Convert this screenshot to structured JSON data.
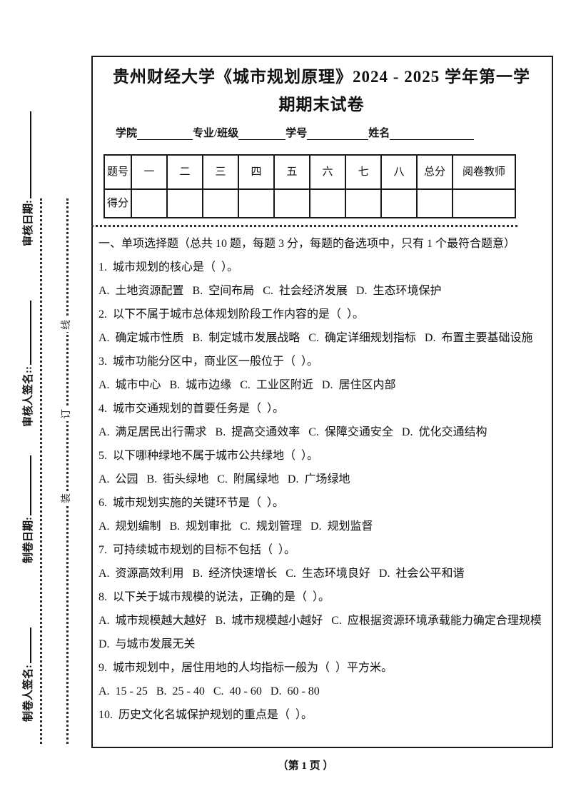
{
  "page": {
    "title": "贵州财经大学《城市规划原理》2024 - 2025 学年第一学期期末试卷",
    "footer": "（第 1 页 ）"
  },
  "margin": {
    "labels": [
      "审核日期:",
      "审核人签名::",
      "制卷日期:",
      "制卷人签名:"
    ],
    "binding_chars": [
      "线",
      "订",
      "装"
    ]
  },
  "form": {
    "fields": [
      {
        "label": "学院"
      },
      {
        "label": "专业/班级"
      },
      {
        "label": "学号"
      },
      {
        "label": "姓名"
      }
    ]
  },
  "score_table": {
    "row_header_label": "题号",
    "score_row_label": "得分",
    "columns": [
      "一",
      "二",
      "三",
      "四",
      "五",
      "六",
      "七",
      "八",
      "总分"
    ],
    "grader_label": "阅卷教师"
  },
  "section": {
    "heading": "一、单项选择题（总共 10 题，每题 3 分，每题的备选项中，只有 1 个最符合题意）"
  },
  "questions": [
    {
      "text": "1.  城市规划的核心是（  ）。",
      "options": "A.  土地资源配置   B.  空间布局   C.  社会经济发展   D.  生态环境保护"
    },
    {
      "text": "2.  以下不属于城市总体规划阶段工作内容的是（  ）。",
      "options": "A.  确定城市性质   B.  制定城市发展战略   C.  确定详细规划指标   D.  布置主要基础设施"
    },
    {
      "text": "3.  城市功能分区中，商业区一般位于（  ）。",
      "options": "A.  城市中心   B.  城市边缘   C.  工业区附近   D.  居住区内部"
    },
    {
      "text": "4.  城市交通规划的首要任务是（  ）。",
      "options": "A.  满足居民出行需求   B.  提高交通效率   C.  保障交通安全   D.  优化交通结构"
    },
    {
      "text": "5.  以下哪种绿地不属于城市公共绿地（  ）。",
      "options": "A.  公园   B.  街头绿地   C.  附属绿地   D.  广场绿地"
    },
    {
      "text": "6.  城市规划实施的关键环节是（  ）。",
      "options": "A.  规划编制   B.  规划审批   C.  规划管理   D.  规划监督"
    },
    {
      "text": "7.  可持续城市规划的目标不包括（  ）。",
      "options": "A.  资源高效利用   B.  经济快速增长   C.  生态环境良好   D.  社会公平和谐"
    },
    {
      "text": "8.  以下关于城市规模的说法，正确的是（  ）。",
      "options": "A.  城市规模越大越好   B.  城市规模越小越好   C.  应根据资源环境承载能力确定合理规模   D.  与城市发展无关"
    },
    {
      "text": "9.  城市规划中，居住用地的人均指标一般为（  ）平方米。",
      "options": "A.  15 - 25   B.  25 - 40   C.  40 - 60   D.  60 - 80"
    },
    {
      "text": "10.  历史文化名城保护规划的重点是（  ）。",
      "options": ""
    }
  ]
}
